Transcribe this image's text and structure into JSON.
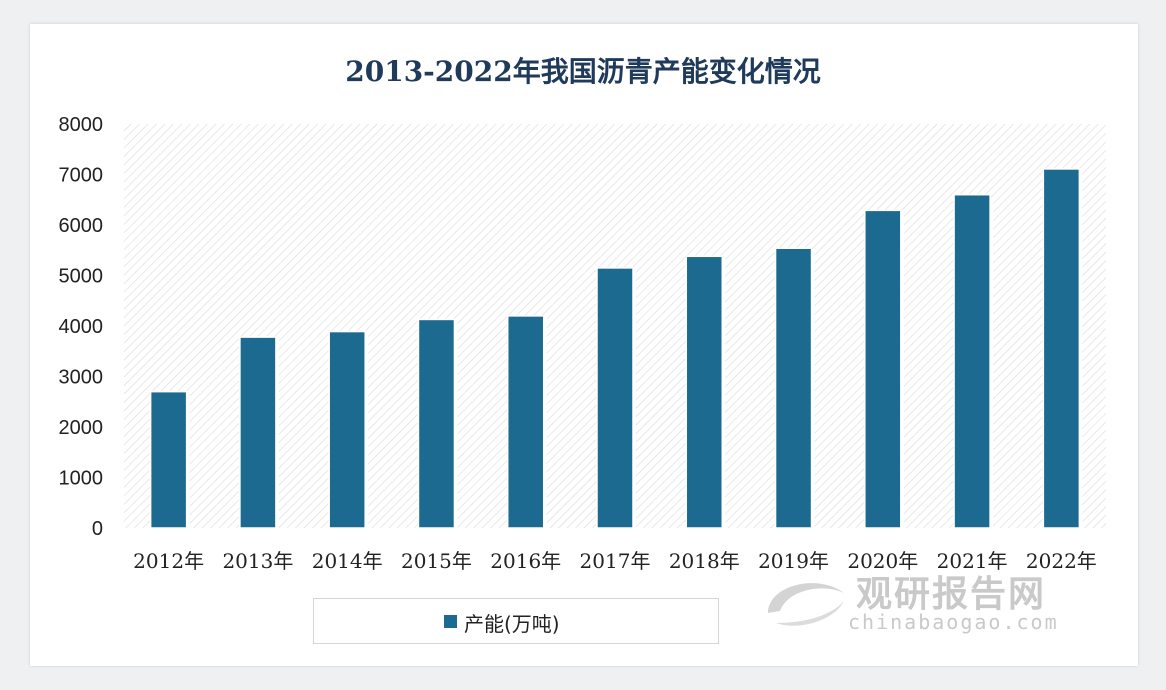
{
  "chart_data": {
    "type": "bar",
    "title": "2013-2022年我国沥青产能变化情况",
    "categories": [
      "2012年",
      "2013年",
      "2014年",
      "2015年",
      "2016年",
      "2017年",
      "2018年",
      "2019年",
      "2020年",
      "2021年",
      "2022年"
    ],
    "series": [
      {
        "name": "产能(万吨)",
        "values": [
          2700,
          3780,
          3890,
          4130,
          4200,
          5150,
          5380,
          5540,
          6290,
          6600,
          7110
        ]
      }
    ],
    "ylim": [
      0,
      8000
    ],
    "yticks": [
      0,
      1000,
      2000,
      3000,
      4000,
      5000,
      6000,
      7000,
      8000
    ],
    "grid": false,
    "legend": "bottom",
    "colors": {
      "bar": "#1c6a90",
      "plot_hatch": "#d9d9d9"
    }
  },
  "watermark": {
    "text_cn": "观研报告网",
    "text_en": "chinabaogao.com"
  }
}
